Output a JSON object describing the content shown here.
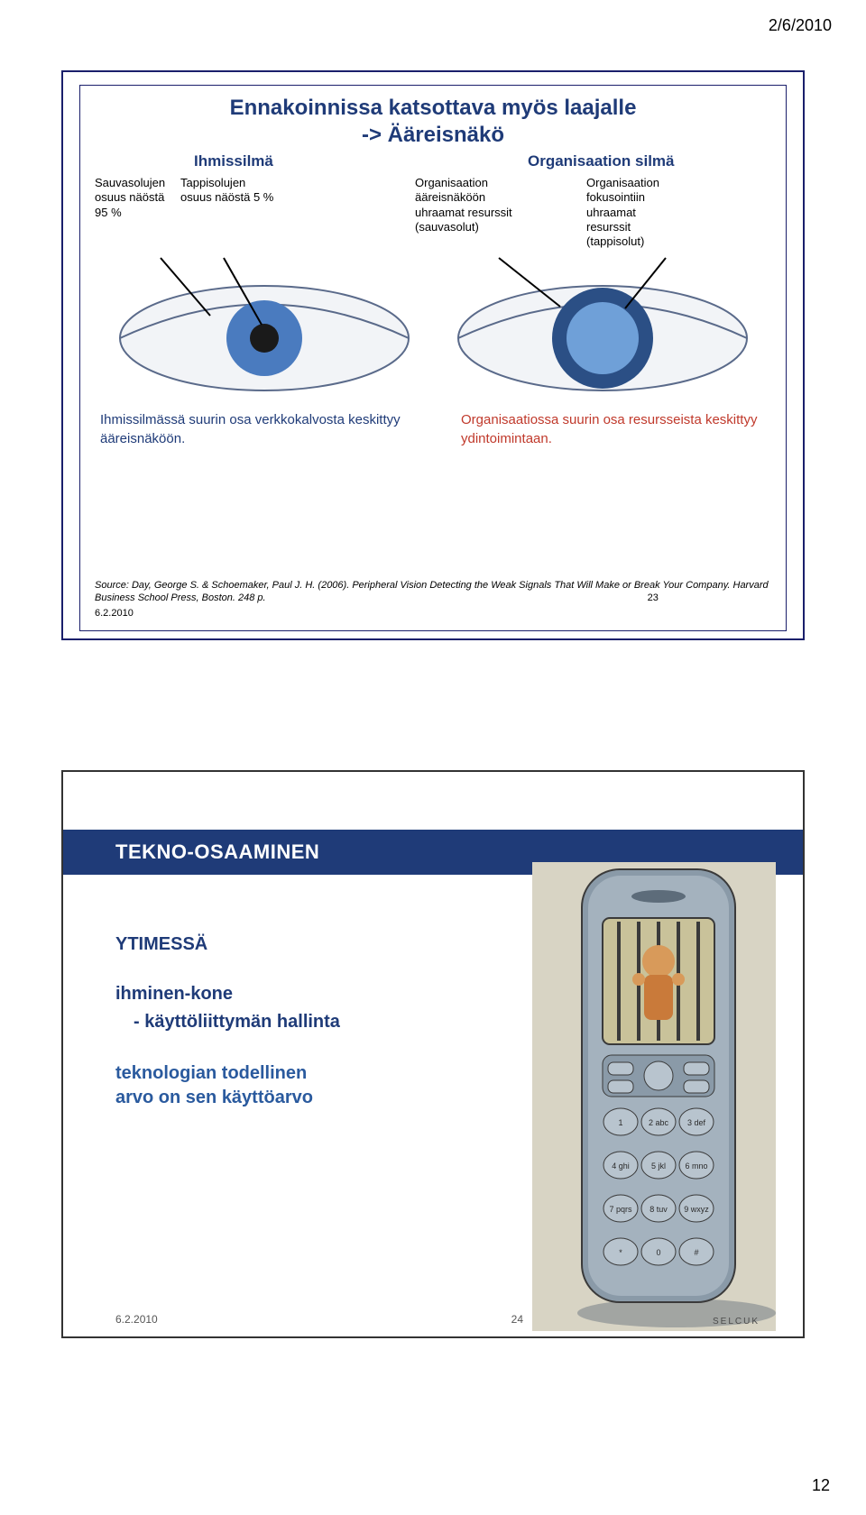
{
  "page": {
    "header_date": "2/6/2010",
    "page_number": "12"
  },
  "slide1": {
    "title_l1": "Ennakoinnissa katsottava myös laajalle",
    "title_l2": "-> Ääreisnäkö",
    "sub_left": "Ihmissilmä",
    "sub_right": "Organisaation silmä",
    "lab1": "Sauvasolujen\nosuus näöstä\n95 %",
    "lab2": "Tappisolujen\nosuus näöstä 5 %",
    "lab3": "Organisaation\nääreisnäköön\nuhraamat resurssit\n(sauvasolut)",
    "lab4": "Organisaation\nfokusointiin\nuhraamat\nresurssit\n(tappisolut)",
    "cap_left": "Ihmissilmässä suurin osa verkkokalvosta keskittyy ääreisnäköön.",
    "cap_right": "Organisaatiossa suurin osa resursseista keskittyy ydintoimintaan.",
    "source": "Source: Day, George S. & Schoemaker, Paul J. H. (2006). Peripheral Vision Detecting the Weak Signals That Will Make or Break Your Company. Harvard Business School Press, Boston. 248 p.",
    "slide_num": "23",
    "slide_date": "6.2.2010",
    "eye_colors": {
      "outline": "#5a6a8a",
      "fill": "#f2f4f7",
      "iris_blue": "#4a7bbf",
      "iris_dark": "#2b4f85",
      "pupil": "#1a1a1a",
      "pointer": "#000000"
    }
  },
  "slide2": {
    "banner": "TEKNO-OSAAMINEN",
    "h1": "YTIMESSÄ",
    "h2a": "ihminen-kone",
    "h2b": "- käyttöliittymän hallinta",
    "h3a": "teknologian todellinen",
    "h3b": "arvo on sen käyttöarvo",
    "date": "6.2.2010",
    "slide_num": "24",
    "phone_colors": {
      "body": "#8a9aa8",
      "body_dark": "#5d6c7a",
      "screen_bg": "#c9c29a",
      "bars": "#3a3a3a",
      "person": "#d89a5a",
      "shadow": "#6b7580",
      "artist": "#4a4a4a",
      "bg": "#d8d4c4"
    },
    "keypad": [
      "1",
      "2 abc",
      "3 def",
      "4 ghi",
      "5 jkl",
      "6 mno",
      "7 pqrs",
      "8 tuv",
      "9 wxyz",
      "*",
      "0",
      "#"
    ]
  }
}
